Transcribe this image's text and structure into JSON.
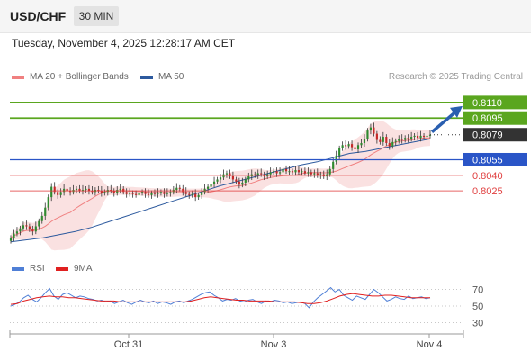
{
  "header": {
    "pair": "USD/CHF",
    "timeframe": "30 MIN"
  },
  "datetime": "Tuesday, November 4, 2025 12:28:17 AM CET",
  "legend": {
    "ma20": {
      "label": "MA 20 + Bollinger Bands",
      "color": "#f08080"
    },
    "ma50": {
      "label": "MA 50",
      "color": "#2d5a9e"
    },
    "rsi": {
      "label": "RSI",
      "color": "#4f7fd6"
    },
    "ma9": {
      "label": "9MA",
      "color": "#e02020"
    }
  },
  "credit": "Research © 2025 Trading Central",
  "chart_data": [
    {
      "type": "candlestick",
      "ylim": [
        0.7975,
        0.8122
      ],
      "levels": [
        {
          "value": "0.8110",
          "kind": "resistance",
          "color": "#5aa61f"
        },
        {
          "value": "0.8095",
          "kind": "resistance",
          "color": "#5aa61f"
        },
        {
          "value": "0.8079",
          "kind": "last",
          "color": "#333333"
        },
        {
          "value": "0.8055",
          "kind": "pivot",
          "color": "#2a55c7"
        },
        {
          "value": "0.8040",
          "kind": "support",
          "color": "#e04040"
        },
        {
          "value": "0.8025",
          "kind": "support",
          "color": "#e04040"
        }
      ],
      "close": [
        0.798,
        0.7984,
        0.7986,
        0.7989,
        0.7992,
        0.7991,
        0.7988,
        0.7986,
        0.7991,
        0.7996,
        0.8001,
        0.8009,
        0.8019,
        0.8029,
        0.8024,
        0.8021,
        0.8024,
        0.8027,
        0.8025,
        0.8024,
        0.8026,
        0.8027,
        0.8025,
        0.8026,
        0.8027,
        0.8025,
        0.8024,
        0.8026,
        0.8025,
        0.8023,
        0.8024,
        0.8026,
        0.8025,
        0.8023,
        0.8026,
        0.8027,
        0.8024,
        0.8022,
        0.8023,
        0.8022,
        0.8021,
        0.8023,
        0.8024,
        0.8022,
        0.8021,
        0.8023,
        0.8022,
        0.8023,
        0.8024,
        0.8022,
        0.8023,
        0.8024,
        0.8026,
        0.8028,
        0.8027,
        0.8024,
        0.8022,
        0.8021,
        0.8022,
        0.8019,
        0.8021,
        0.8024,
        0.8027,
        0.8029,
        0.8032,
        0.8034,
        0.8036,
        0.8038,
        0.8041,
        0.8042,
        0.8039,
        0.8036,
        0.8034,
        0.8031,
        0.8033,
        0.8036,
        0.8039,
        0.8041,
        0.804,
        0.8042,
        0.8041,
        0.8039,
        0.8041,
        0.8043,
        0.8044,
        0.8042,
        0.8043,
        0.8046,
        0.8044,
        0.8044,
        0.8043,
        0.8045,
        0.8043,
        0.8044,
        0.8042,
        0.8043,
        0.8041,
        0.8042,
        0.804,
        0.8041,
        0.8039,
        0.8041,
        0.8046,
        0.8053,
        0.8059,
        0.8066,
        0.8069,
        0.8068,
        0.807,
        0.8067,
        0.8065,
        0.8069,
        0.8071,
        0.8075,
        0.8083,
        0.8086,
        0.808,
        0.8074,
        0.8072,
        0.8077,
        0.8071,
        0.8068,
        0.8072,
        0.8073,
        0.8075,
        0.8074,
        0.8076,
        0.8075,
        0.8077,
        0.8078,
        0.8076,
        0.8078,
        0.8077,
        0.8078,
        0.8079
      ],
      "ma50": [
        0.7976,
        0.7978,
        0.798,
        0.7983,
        0.7986,
        0.799,
        0.7995,
        0.8,
        0.8005,
        0.801,
        0.8015,
        0.802,
        0.8025,
        0.803,
        0.8034,
        0.8038,
        0.8042,
        0.8046,
        0.805,
        0.8053,
        0.8057,
        0.8061,
        0.8063,
        0.8066,
        0.8069,
        0.8072,
        0.8075
      ]
    },
    {
      "type": "line",
      "ylabel": "RSI",
      "ticks": [
        "70",
        "50",
        "30"
      ],
      "ylim": [
        20,
        80
      ],
      "rsi": [
        50,
        52,
        55,
        60,
        63,
        58,
        55,
        60,
        66,
        71,
        62,
        58,
        64,
        66,
        63,
        60,
        62,
        61,
        59,
        58,
        56,
        57,
        55,
        56,
        53,
        55,
        57,
        54,
        52,
        55,
        57,
        55,
        54,
        56,
        53,
        55,
        54,
        52,
        55,
        56,
        54,
        56,
        58,
        61,
        64,
        66,
        67,
        63,
        60,
        56,
        58,
        57,
        59,
        56,
        55,
        57,
        58,
        55,
        53,
        56,
        55,
        57,
        56,
        54,
        55,
        53,
        54,
        55,
        53,
        48,
        55,
        60,
        64,
        68,
        72,
        67,
        70,
        63,
        60,
        57,
        62,
        60,
        58,
        64,
        70,
        66,
        61,
        56,
        58,
        61,
        59,
        58,
        62,
        59,
        60,
        61,
        59,
        60
      ],
      "ma9": [
        52,
        53,
        56,
        58,
        60,
        61,
        62,
        61,
        61,
        60,
        60,
        59,
        58,
        57,
        56,
        56,
        56,
        55,
        55,
        55,
        55,
        55,
        55,
        55,
        55,
        55,
        55,
        55,
        56,
        58,
        60,
        61,
        60,
        59,
        58,
        57,
        57,
        56,
        56,
        56,
        56,
        55,
        55,
        55,
        55,
        54,
        53,
        53,
        54,
        56,
        59,
        62,
        64,
        65,
        64,
        63,
        62,
        62,
        63,
        63,
        62,
        61,
        60,
        60,
        60,
        60
      ]
    }
  ],
  "xaxis": {
    "ticks": [
      "Oct 31",
      "Nov 3",
      "Nov 4"
    ]
  }
}
